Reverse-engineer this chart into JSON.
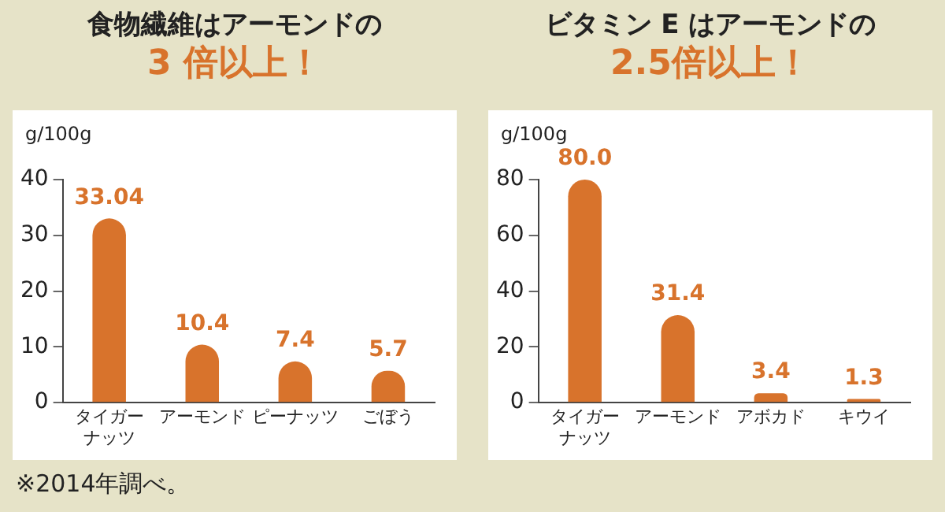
{
  "chart_data": [
    {
      "type": "bar",
      "title": "食物繊維はアーモンドの",
      "subtitle": "3 倍以上！",
      "ylabel": "g/100g",
      "categories": [
        "タイガーナッツ",
        "アーモンド",
        "ピーナッツ",
        "ごぼう"
      ],
      "values": [
        33.04,
        10.4,
        7.4,
        5.7
      ],
      "value_labels": [
        "33.04",
        "10.4",
        "7.4",
        "5.7"
      ],
      "color": "#d8732c",
      "ylim": [
        0,
        40
      ],
      "yticks": [
        0,
        10,
        20,
        30,
        40
      ],
      "grid": false,
      "legend": false,
      "annotations": [
        "※2014年調べ。"
      ]
    },
    {
      "type": "bar",
      "title": "ビタミン E はアーモンドの",
      "subtitle": "2.5倍以上！",
      "ylabel": "g/100g",
      "categories": [
        "タイガーナッツ",
        "アーモンド",
        "アボカド",
        "キウイ"
      ],
      "values": [
        80.0,
        31.4,
        3.4,
        1.3
      ],
      "value_labels": [
        "80.0",
        "31.4",
        "3.4",
        "1.3"
      ],
      "color": "#d8732c",
      "ylim": [
        0,
        80
      ],
      "yticks": [
        0,
        20,
        40,
        60,
        80
      ],
      "grid": false,
      "legend": false
    }
  ]
}
